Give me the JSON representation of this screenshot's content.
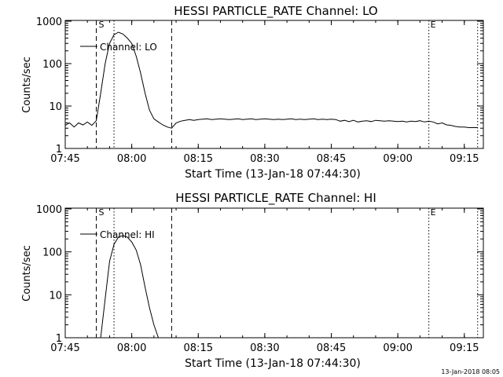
{
  "chart_data": [
    {
      "type": "line",
      "title": "HESSI PARTICLE_RATE Channel: LO",
      "xlabel": "Start Time (13-Jan-18 07:44:30)",
      "ylabel": "Counts/sec",
      "yscale": "log",
      "ylim": [
        1,
        1000
      ],
      "xlim": [
        "07:45",
        "09:20"
      ],
      "x_tick_labels": [
        "07:45",
        "08:00",
        "08:15",
        "08:30",
        "08:45",
        "09:00",
        "09:15"
      ],
      "y_tick_labels": [
        "1",
        "10",
        "100",
        "1000"
      ],
      "legend": "Channel: LO",
      "legend_position": "top-left",
      "markers": {
        "start_label": "S",
        "end_label": "E"
      },
      "vertical_lines": [
        {
          "time": "07:52",
          "style": "dashed"
        },
        {
          "time": "07:56",
          "style": "dotted"
        },
        {
          "time": "08:09",
          "style": "dashed"
        },
        {
          "time": "09:07",
          "style": "dotted"
        },
        {
          "time": "09:18",
          "style": "dotted"
        }
      ],
      "series": [
        {
          "name": "Channel: LO",
          "x": [
            "07:45",
            "07:46",
            "07:47",
            "07:48",
            "07:49",
            "07:50",
            "07:51",
            "07:52",
            "07:53",
            "07:54",
            "07:55",
            "07:56",
            "07:57",
            "07:58",
            "07:59",
            "08:00",
            "08:01",
            "08:02",
            "08:03",
            "08:04",
            "08:05",
            "08:06",
            "08:07",
            "08:08",
            "08:09",
            "08:10",
            "08:11",
            "08:12",
            "08:13",
            "08:14",
            "08:15",
            "08:16",
            "08:17",
            "08:18",
            "08:19",
            "08:20",
            "08:21",
            "08:22",
            "08:23",
            "08:24",
            "08:25",
            "08:26",
            "08:27",
            "08:28",
            "08:29",
            "08:30",
            "08:31",
            "08:32",
            "08:33",
            "08:34",
            "08:35",
            "08:36",
            "08:37",
            "08:38",
            "08:39",
            "08:40",
            "08:41",
            "08:42",
            "08:43",
            "08:44",
            "08:45",
            "08:46",
            "08:47",
            "08:48",
            "08:49",
            "08:50",
            "08:51",
            "08:52",
            "08:53",
            "08:54",
            "08:55",
            "08:56",
            "08:57",
            "08:58",
            "08:59",
            "09:00",
            "09:01",
            "09:02",
            "09:03",
            "09:04",
            "09:05",
            "09:06",
            "09:07",
            "09:08",
            "09:09",
            "09:10",
            "09:11",
            "09:12",
            "09:13",
            "09:14",
            "09:15",
            "09:16",
            "09:17",
            "09:18"
          ],
          "y": [
            3.5,
            4,
            3.2,
            4,
            3.6,
            4.2,
            3.5,
            4.5,
            20,
            100,
            300,
            480,
            550,
            500,
            400,
            300,
            150,
            60,
            20,
            8,
            5,
            4.2,
            3.6,
            3.2,
            3,
            4,
            4.4,
            4.6,
            4.8,
            4.6,
            4.8,
            4.9,
            5,
            4.8,
            4.9,
            5,
            4.9,
            4.8,
            4.9,
            5,
            4.8,
            4.9,
            5,
            4.8,
            4.9,
            5,
            4.9,
            4.8,
            4.9,
            4.8,
            4.9,
            5,
            4.8,
            4.9,
            4.8,
            4.9,
            5,
            4.8,
            4.9,
            4.8,
            4.9,
            4.8,
            4.4,
            4.6,
            4.3,
            4.6,
            4.2,
            4.4,
            4.5,
            4.3,
            4.6,
            4.5,
            4.4,
            4.5,
            4.4,
            4.3,
            4.4,
            4.2,
            4.4,
            4.3,
            4.5,
            4.2,
            4.4,
            4.2,
            3.8,
            4,
            3.6,
            3.5,
            3.3,
            3.2,
            3.2,
            3.1,
            3.1,
            3.1
          ]
        }
      ]
    },
    {
      "type": "line",
      "title": "HESSI PARTICLE_RATE Channel: HI",
      "xlabel": "Start Time (13-Jan-18 07:44:30)",
      "ylabel": "Counts/sec",
      "yscale": "log",
      "ylim": [
        1,
        1000
      ],
      "xlim": [
        "07:45",
        "09:20"
      ],
      "x_tick_labels": [
        "07:45",
        "08:00",
        "08:15",
        "08:30",
        "08:45",
        "09:00",
        "09:15"
      ],
      "y_tick_labels": [
        "1",
        "10",
        "100",
        "1000"
      ],
      "legend": "Channel: HI",
      "legend_position": "top-left",
      "markers": {
        "start_label": "S",
        "end_label": "E"
      },
      "vertical_lines": [
        {
          "time": "07:52",
          "style": "dashed"
        },
        {
          "time": "07:56",
          "style": "dotted"
        },
        {
          "time": "08:09",
          "style": "dashed"
        },
        {
          "time": "09:07",
          "style": "dotted"
        },
        {
          "time": "09:18",
          "style": "dotted"
        }
      ],
      "series": [
        {
          "name": "Channel: HI",
          "x": [
            "07:53",
            "07:54",
            "07:55",
            "07:56",
            "07:57",
            "07:58",
            "07:59",
            "08:00",
            "08:01",
            "08:02",
            "08:03",
            "08:04",
            "08:05",
            "08:06"
          ],
          "y": [
            1,
            8,
            60,
            150,
            220,
            240,
            220,
            170,
            110,
            50,
            15,
            5,
            2,
            1
          ]
        }
      ]
    }
  ],
  "footer": {
    "timestamp": "13-Jan-2018 08:05"
  }
}
